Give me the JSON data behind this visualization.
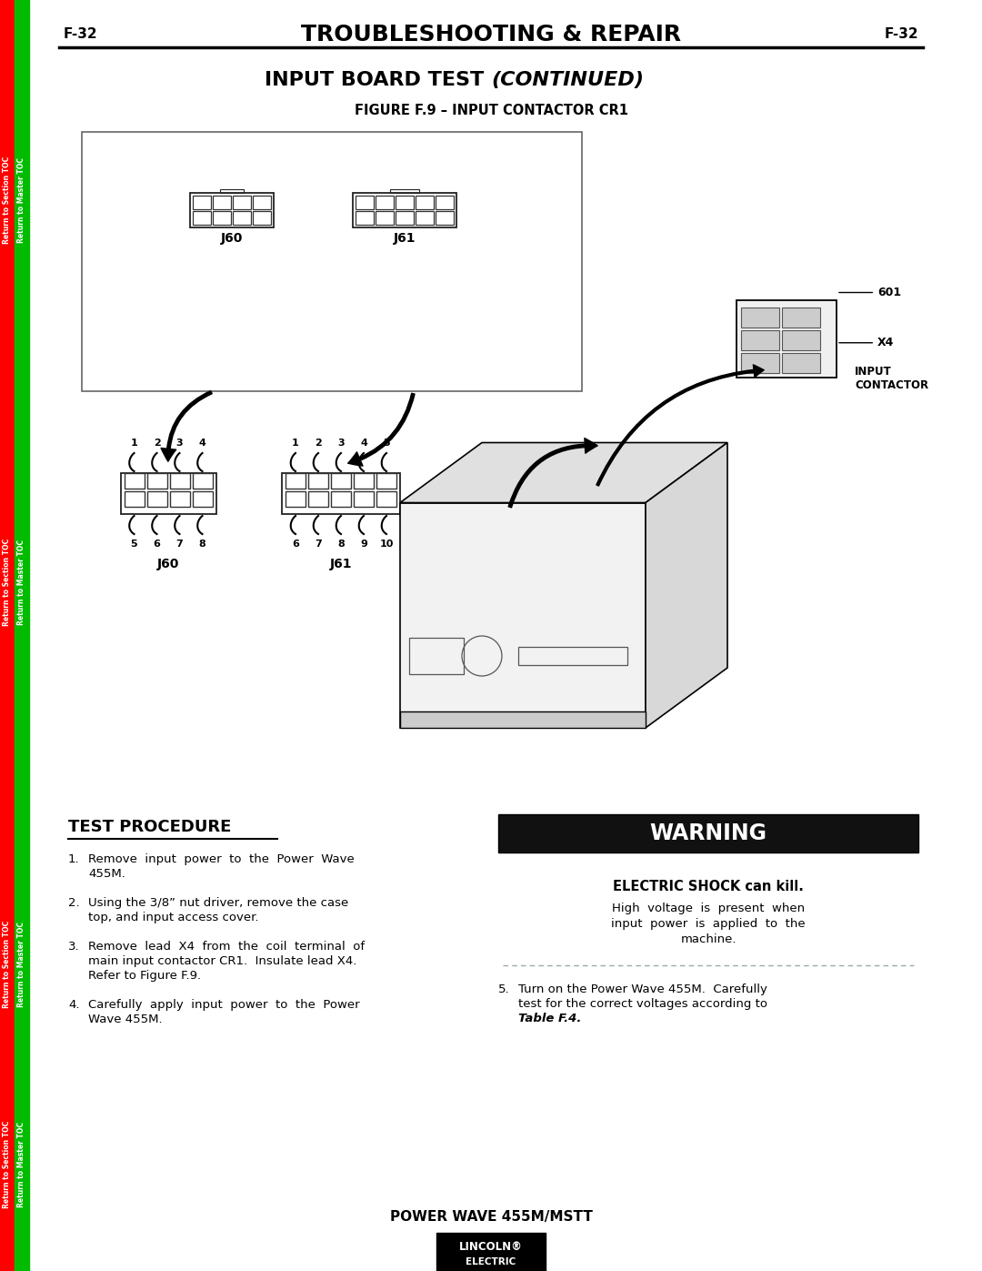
{
  "page_num": "F-32",
  "header_title": "TROUBLESHOOTING & REPAIR",
  "section_title_normal": "INPUT BOARD TEST ",
  "section_title_italic": "(CONTINUED)",
  "figure_title": "FIGURE F.9 – INPUT CONTACTOR CR1",
  "sidebar_section": "Return to Section TOC",
  "sidebar_master": "Return to Master TOC",
  "sidebar_color_section": "#ff0000",
  "sidebar_color_master": "#00bb00",
  "bg_color": "#ffffff",
  "warning_bg": "#111111",
  "warning_text_color": "#ffffff",
  "warning_title": "WARNING",
  "warning_bold": "ELECTRIC SHOCK can kill.",
  "warning_body_lines": [
    "High  voltage  is  present  when",
    "input  power  is  applied  to  the",
    "machine."
  ],
  "test_procedure_title": "TEST PROCEDURE",
  "step1_lines": [
    "Remove  input  power  to  the  Power  Wave",
    "455M."
  ],
  "step2_lines": [
    "Using the 3/8” nut driver, remove the case",
    "top, and input access cover."
  ],
  "step3_lines": [
    "Remove  lead  X4  from  the  coil  terminal  of",
    "main input contactor CR1.  Insulate lead X4.",
    "Refer to Figure F.9."
  ],
  "step4_lines": [
    "Carefully  apply  input  power  to  the  Power",
    "Wave 455M."
  ],
  "step5_lines": [
    "Turn on the Power Wave 455M.  Carefully",
    "test for the correct voltages according to"
  ],
  "step5_bold": "Table F.4.",
  "footer_model": "POWER WAVE 455M/MSTT",
  "label_601": "601",
  "label_x4": "X4",
  "label_input_contactor": "INPUT\nCONTACTOR"
}
